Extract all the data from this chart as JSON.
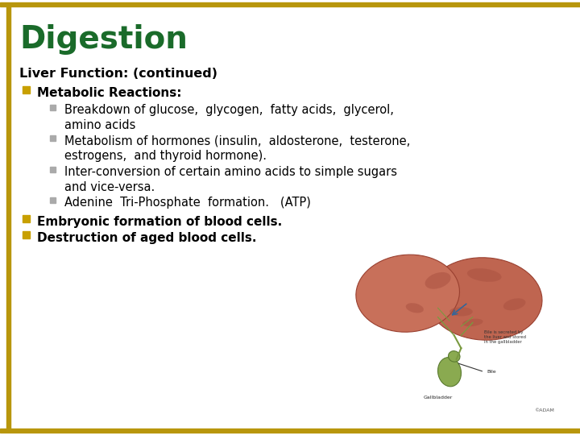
{
  "title": "Digestion",
  "title_color": "#1a6b2a",
  "title_fontsize": 28,
  "background_color": "#ffffff",
  "border_color": "#b8960c",
  "header_text": "Liver Function: (continued)",
  "header_fontsize": 11.5,
  "bullet_color": "#c8a000",
  "sub_bullet_color": "#888888",
  "content_fontsize": 11,
  "bullet1_label": "Metabolic Reactions:",
  "sub_bullets": [
    "Breakdown of glucose, glycogen,  fatty acids,  glycerol,\namino acids",
    "Metabolism of hormones (insulin,  aldosterone,  testerone,\nestrogens,  and thyroid hormone).",
    "Inter-conversion of certain amino acids to simple sugars\nand vice-versa.",
    "Adenine  Tri-Phosphate  formation.   (ATP)"
  ],
  "bullet2_label": "Embryonic formation of blood cells.",
  "bullet3_label": "Destruction of aged blood cells.",
  "left_bar_color": "#b8960c",
  "top_bar_color": "#b8960c",
  "bottom_bar_color": "#b8960c"
}
